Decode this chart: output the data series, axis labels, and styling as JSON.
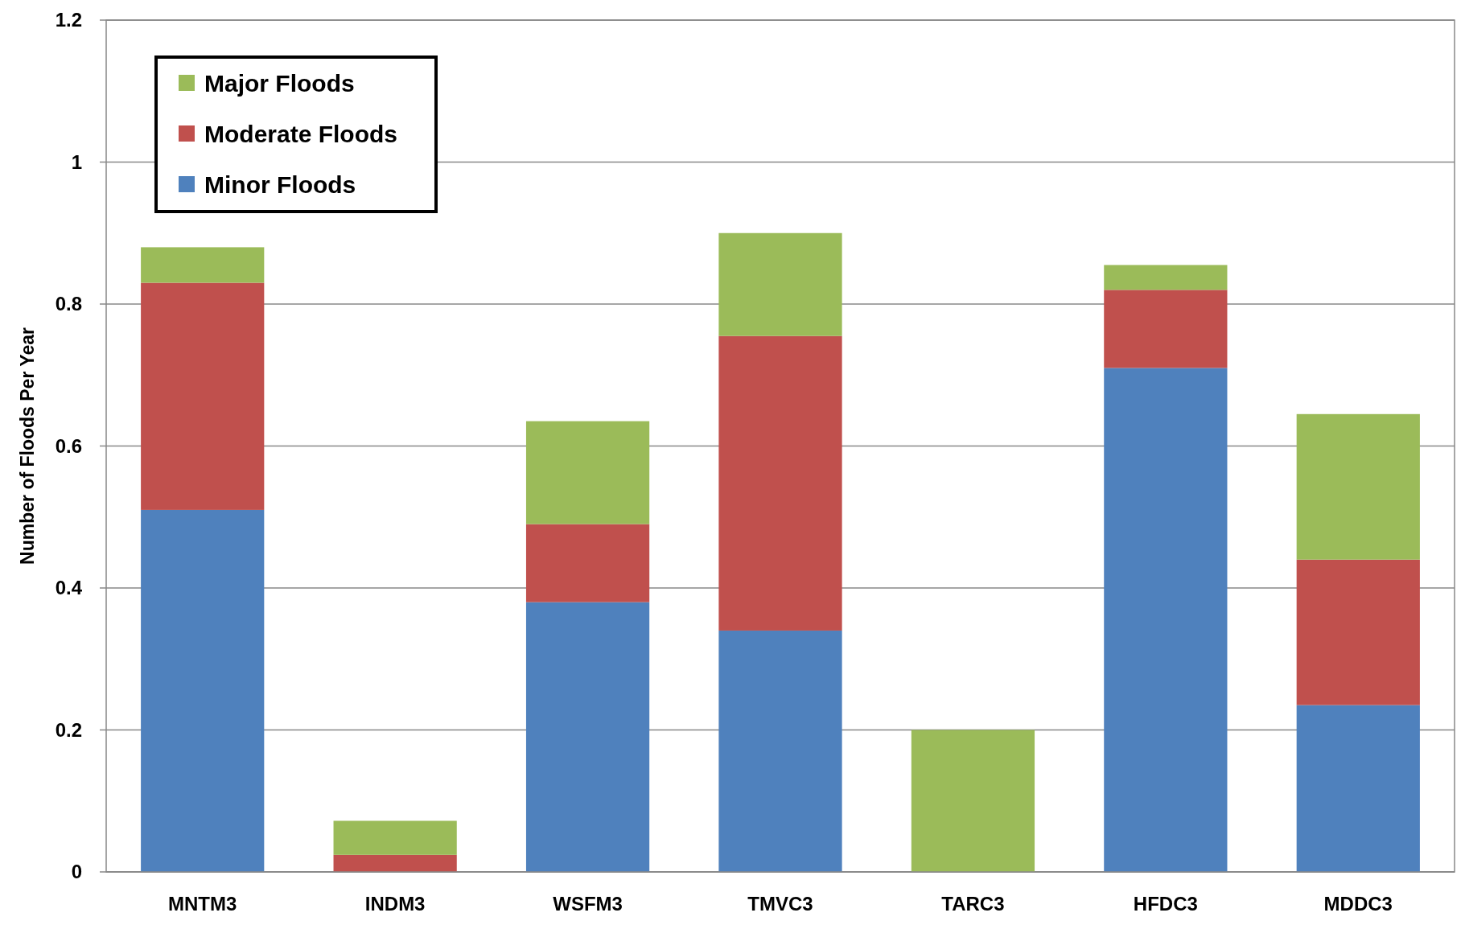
{
  "chart_data": {
    "type": "bar",
    "stacked": true,
    "ylabel": "Number of Floods Per Year",
    "categories": [
      "MNTM3",
      "INDM3",
      "WSFM3",
      "TMVC3",
      "TARC3",
      "HFDC3",
      "MDDC3"
    ],
    "series": [
      {
        "name": "Minor Floods",
        "color": "#4f81bd",
        "values": [
          0.51,
          0,
          0.38,
          0.34,
          0,
          0.71,
          0.235
        ]
      },
      {
        "name": "Moderate Floods",
        "color": "#c0504d",
        "values": [
          0.32,
          0.024,
          0.11,
          0.415,
          0,
          0.11,
          0.205
        ]
      },
      {
        "name": "Major Floods",
        "color": "#9bbb59",
        "values": [
          0.05,
          0.048,
          0.145,
          0.145,
          0.2,
          0.035,
          0.205
        ]
      }
    ],
    "ylim": [
      0,
      1.2
    ],
    "yticks": [
      0,
      0.2,
      0.4,
      0.6,
      0.8,
      1,
      1.2
    ],
    "grid": "y",
    "legend": "top left"
  }
}
